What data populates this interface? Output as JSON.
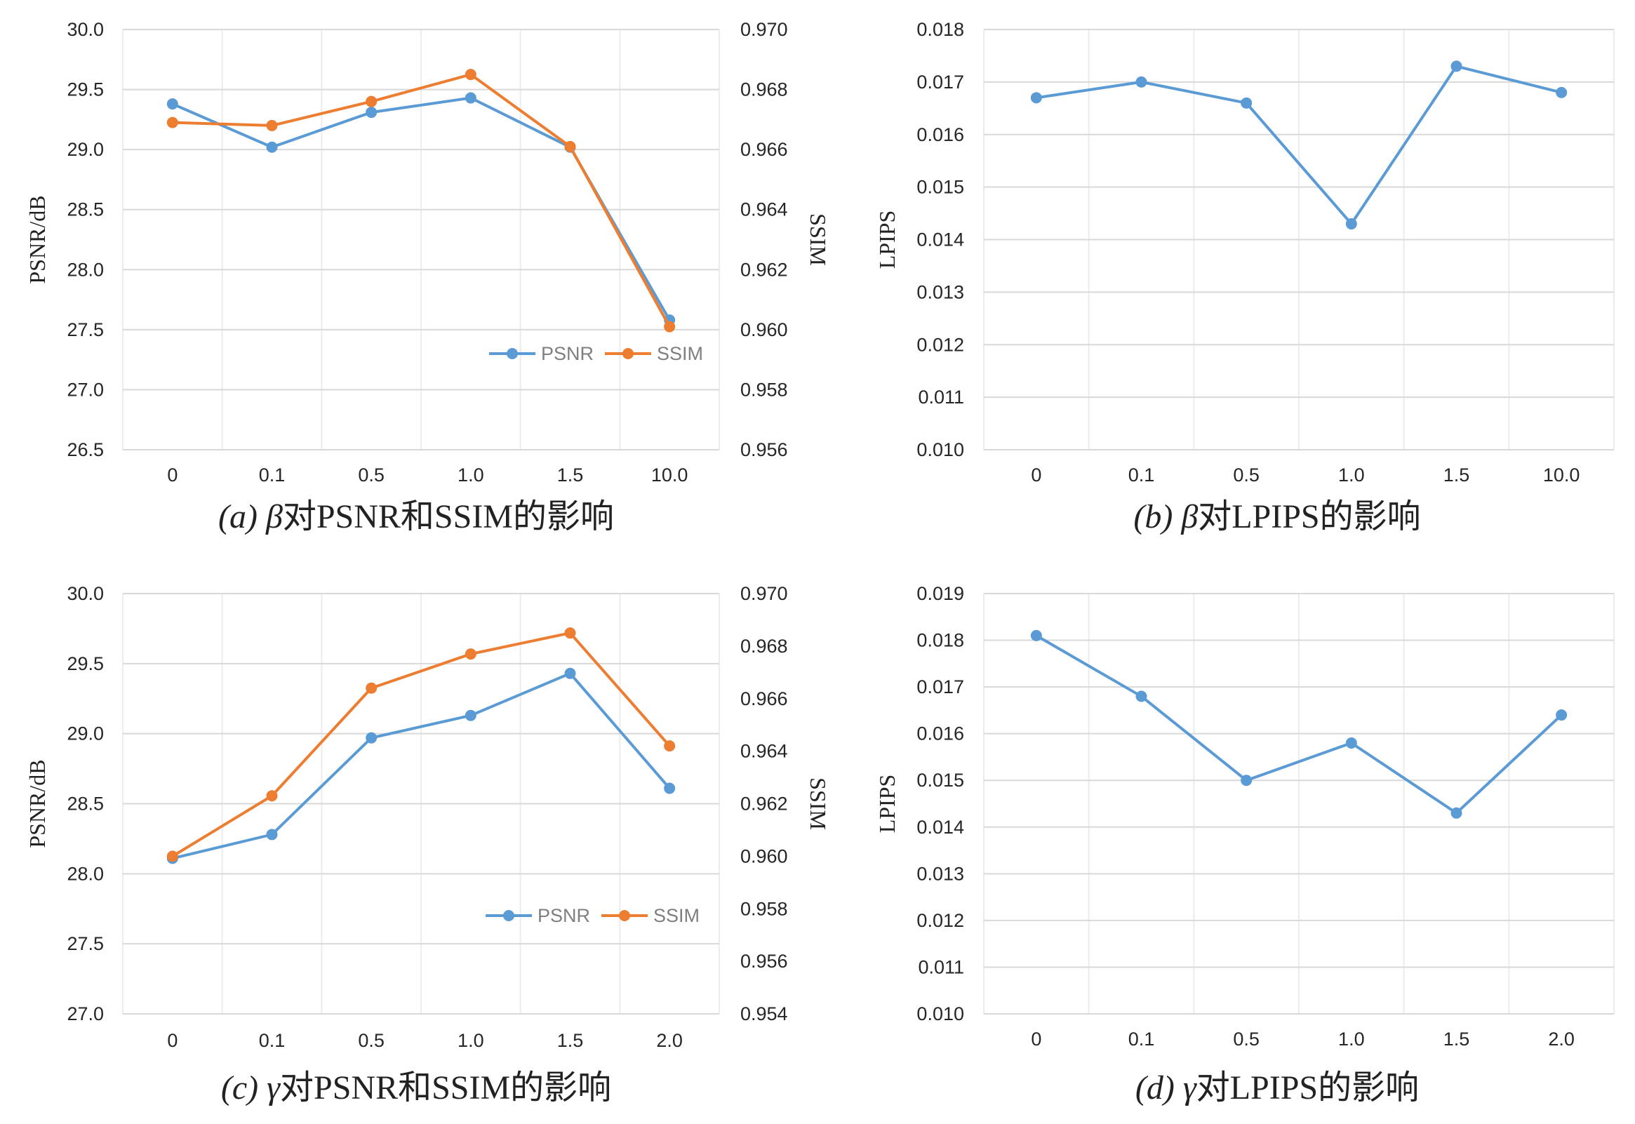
{
  "colors": {
    "psnr": "#5b9bd5",
    "ssim": "#ed7d31",
    "lpips": "#5b9bd5",
    "grid": "#d9d9d9"
  },
  "chart_data": [
    {
      "type": "line",
      "id": "a",
      "caption": {
        "label": "(a)",
        "symbol": "β",
        "text": "对PSNR和SSIM的影响"
      },
      "categories": [
        "0",
        "0.1",
        "0.5",
        "1.0",
        "1.5",
        "10.0"
      ],
      "ylabel": "PSNR/dB",
      "y2label": "SSIM",
      "ylim": [
        26.5,
        30.0
      ],
      "yticks": [
        "30.0",
        "29.5",
        "29.0",
        "28.5",
        "28.0",
        "27.5",
        "27.0",
        "26.5"
      ],
      "y2lim": [
        0.956,
        0.97
      ],
      "y2ticks": [
        "0.970",
        "0.968",
        "0.966",
        "0.964",
        "0.962",
        "0.960",
        "0.958",
        "0.956"
      ],
      "legend": "bottom-right",
      "series": [
        {
          "name": "PSNR",
          "axis": "left",
          "color": "#5b9bd5",
          "values": [
            29.38,
            29.02,
            29.31,
            29.43,
            29.02,
            27.58
          ]
        },
        {
          "name": "SSIM",
          "axis": "right",
          "color": "#ed7d31",
          "values": [
            0.9669,
            0.9668,
            0.9676,
            0.9685,
            0.9661,
            0.9601
          ]
        }
      ]
    },
    {
      "type": "line",
      "id": "b",
      "caption": {
        "label": "(b)",
        "symbol": "β",
        "text": "对LPIPS的影响"
      },
      "categories": [
        "0",
        "0.1",
        "0.5",
        "1.0",
        "1.5",
        "10.0"
      ],
      "ylabel": "LPIPS",
      "ylim": [
        0.01,
        0.018
      ],
      "yticks": [
        "0.018",
        "0.017",
        "0.016",
        "0.015",
        "0.014",
        "0.013",
        "0.012",
        "0.011",
        "0.010"
      ],
      "series": [
        {
          "axis": "left",
          "color": "#5b9bd5",
          "values": [
            0.0167,
            0.017,
            0.0166,
            0.0143,
            0.0173,
            0.0168
          ]
        }
      ]
    },
    {
      "type": "line",
      "id": "c",
      "caption": {
        "label": "(c)",
        "symbol": "γ",
        "text": "对PSNR和SSIM的影响"
      },
      "categories": [
        "0",
        "0.1",
        "0.5",
        "1.0",
        "1.5",
        "2.0"
      ],
      "ylabel": "PSNR/dB",
      "y2label": "SSIM",
      "ylim": [
        27.0,
        30.0
      ],
      "yticks": [
        "30.0",
        "29.5",
        "29.0",
        "28.5",
        "28.0",
        "27.5",
        "27.0"
      ],
      "y2lim": [
        0.954,
        0.97
      ],
      "y2ticks": [
        "0.970",
        "0.968",
        "0.966",
        "0.964",
        "0.962",
        "0.960",
        "0.958",
        "0.956",
        "0.954"
      ],
      "legend": "bottom-right",
      "series": [
        {
          "name": "PSNR",
          "axis": "left",
          "color": "#5b9bd5",
          "values": [
            28.11,
            28.28,
            28.97,
            29.13,
            29.43,
            28.61
          ]
        },
        {
          "name": "SSIM",
          "axis": "right",
          "color": "#ed7d31",
          "values": [
            0.96,
            0.9623,
            0.9664,
            0.9677,
            0.9685,
            0.9642
          ]
        }
      ]
    },
    {
      "type": "line",
      "id": "d",
      "caption": {
        "label": "(d)",
        "symbol": "γ",
        "text": "对LPIPS的影响"
      },
      "categories": [
        "0",
        "0.1",
        "0.5",
        "1.0",
        "1.5",
        "2.0"
      ],
      "ylabel": "LPIPS",
      "ylim": [
        0.01,
        0.019
      ],
      "yticks": [
        "0.019",
        "0.018",
        "0.017",
        "0.016",
        "0.015",
        "0.014",
        "0.013",
        "0.012",
        "0.011",
        "0.010"
      ],
      "series": [
        {
          "axis": "left",
          "color": "#5b9bd5",
          "values": [
            0.0181,
            0.0168,
            0.015,
            0.0158,
            0.0143,
            0.0164
          ]
        }
      ]
    }
  ]
}
